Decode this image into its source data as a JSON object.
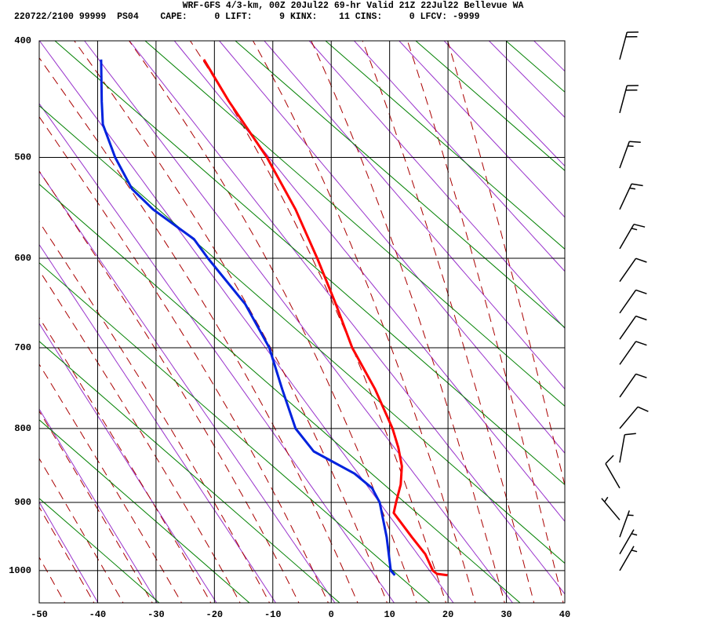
{
  "chart_data": {
    "type": "sounding",
    "title": "WRF-GFS 4/3-km, 00Z 20Jul22 69-hr Valid 21Z 22Jul22 Bellevue WA",
    "subtitle": "220722/2100 99999  PS04    CAPE:     0 LIFT:     9 KINX:    11 CINS:     0 LFCV: -9999",
    "xlim": [
      -50,
      40
    ],
    "xticks": [
      -50,
      -40,
      -30,
      -20,
      -10,
      0,
      10,
      20,
      30,
      40
    ],
    "ylim": [
      400,
      1050
    ],
    "yticks": [
      400,
      500,
      600,
      700,
      800,
      900,
      1000
    ],
    "grid": true,
    "series": [
      {
        "color": "#ff0000",
        "x": [
          -21.8,
          -17.5,
          -11.0,
          -6.1,
          -2.4,
          0.8,
          3.6,
          7.5,
          10.5,
          11.5,
          12.1,
          11.9,
          11.1,
          10.7,
          13.8,
          16.1,
          17.4,
          18.1,
          19.9
        ],
        "values": [
          415,
          450,
          500,
          550,
          600,
          650,
          700,
          750,
          800,
          825,
          850,
          875,
          900,
          915,
          950,
          975,
          1000,
          1005,
          1007
        ]
      },
      {
        "color": "#0022dd",
        "x": [
          -39.4,
          -39.3,
          -39.1,
          -37.0,
          -34.1,
          -30.5,
          -23.5,
          -21.1,
          -14.7,
          -10.6,
          -8.4,
          -6.1,
          -3.0,
          4.0,
          7.0,
          8.3,
          9.5,
          10.2,
          10.9
        ],
        "values": [
          415,
          450,
          470,
          500,
          530,
          550,
          580,
          600,
          650,
          700,
          750,
          800,
          830,
          860,
          880,
          900,
          950,
          1000,
          1007
        ]
      }
    ],
    "winds": {
      "pressure": [
        415,
        460,
        510,
        550,
        590,
        625,
        660,
        690,
        720,
        760,
        800,
        845,
        880,
        925,
        950,
        975,
        1000
      ],
      "direction": [
        15,
        15,
        20,
        25,
        30,
        35,
        35,
        35,
        35,
        35,
        40,
        10,
        330,
        320,
        20,
        30,
        30
      ],
      "speed": [
        20,
        20,
        15,
        15,
        15,
        10,
        10,
        10,
        10,
        10,
        10,
        10,
        10,
        5,
        5,
        5,
        5
      ]
    }
  }
}
